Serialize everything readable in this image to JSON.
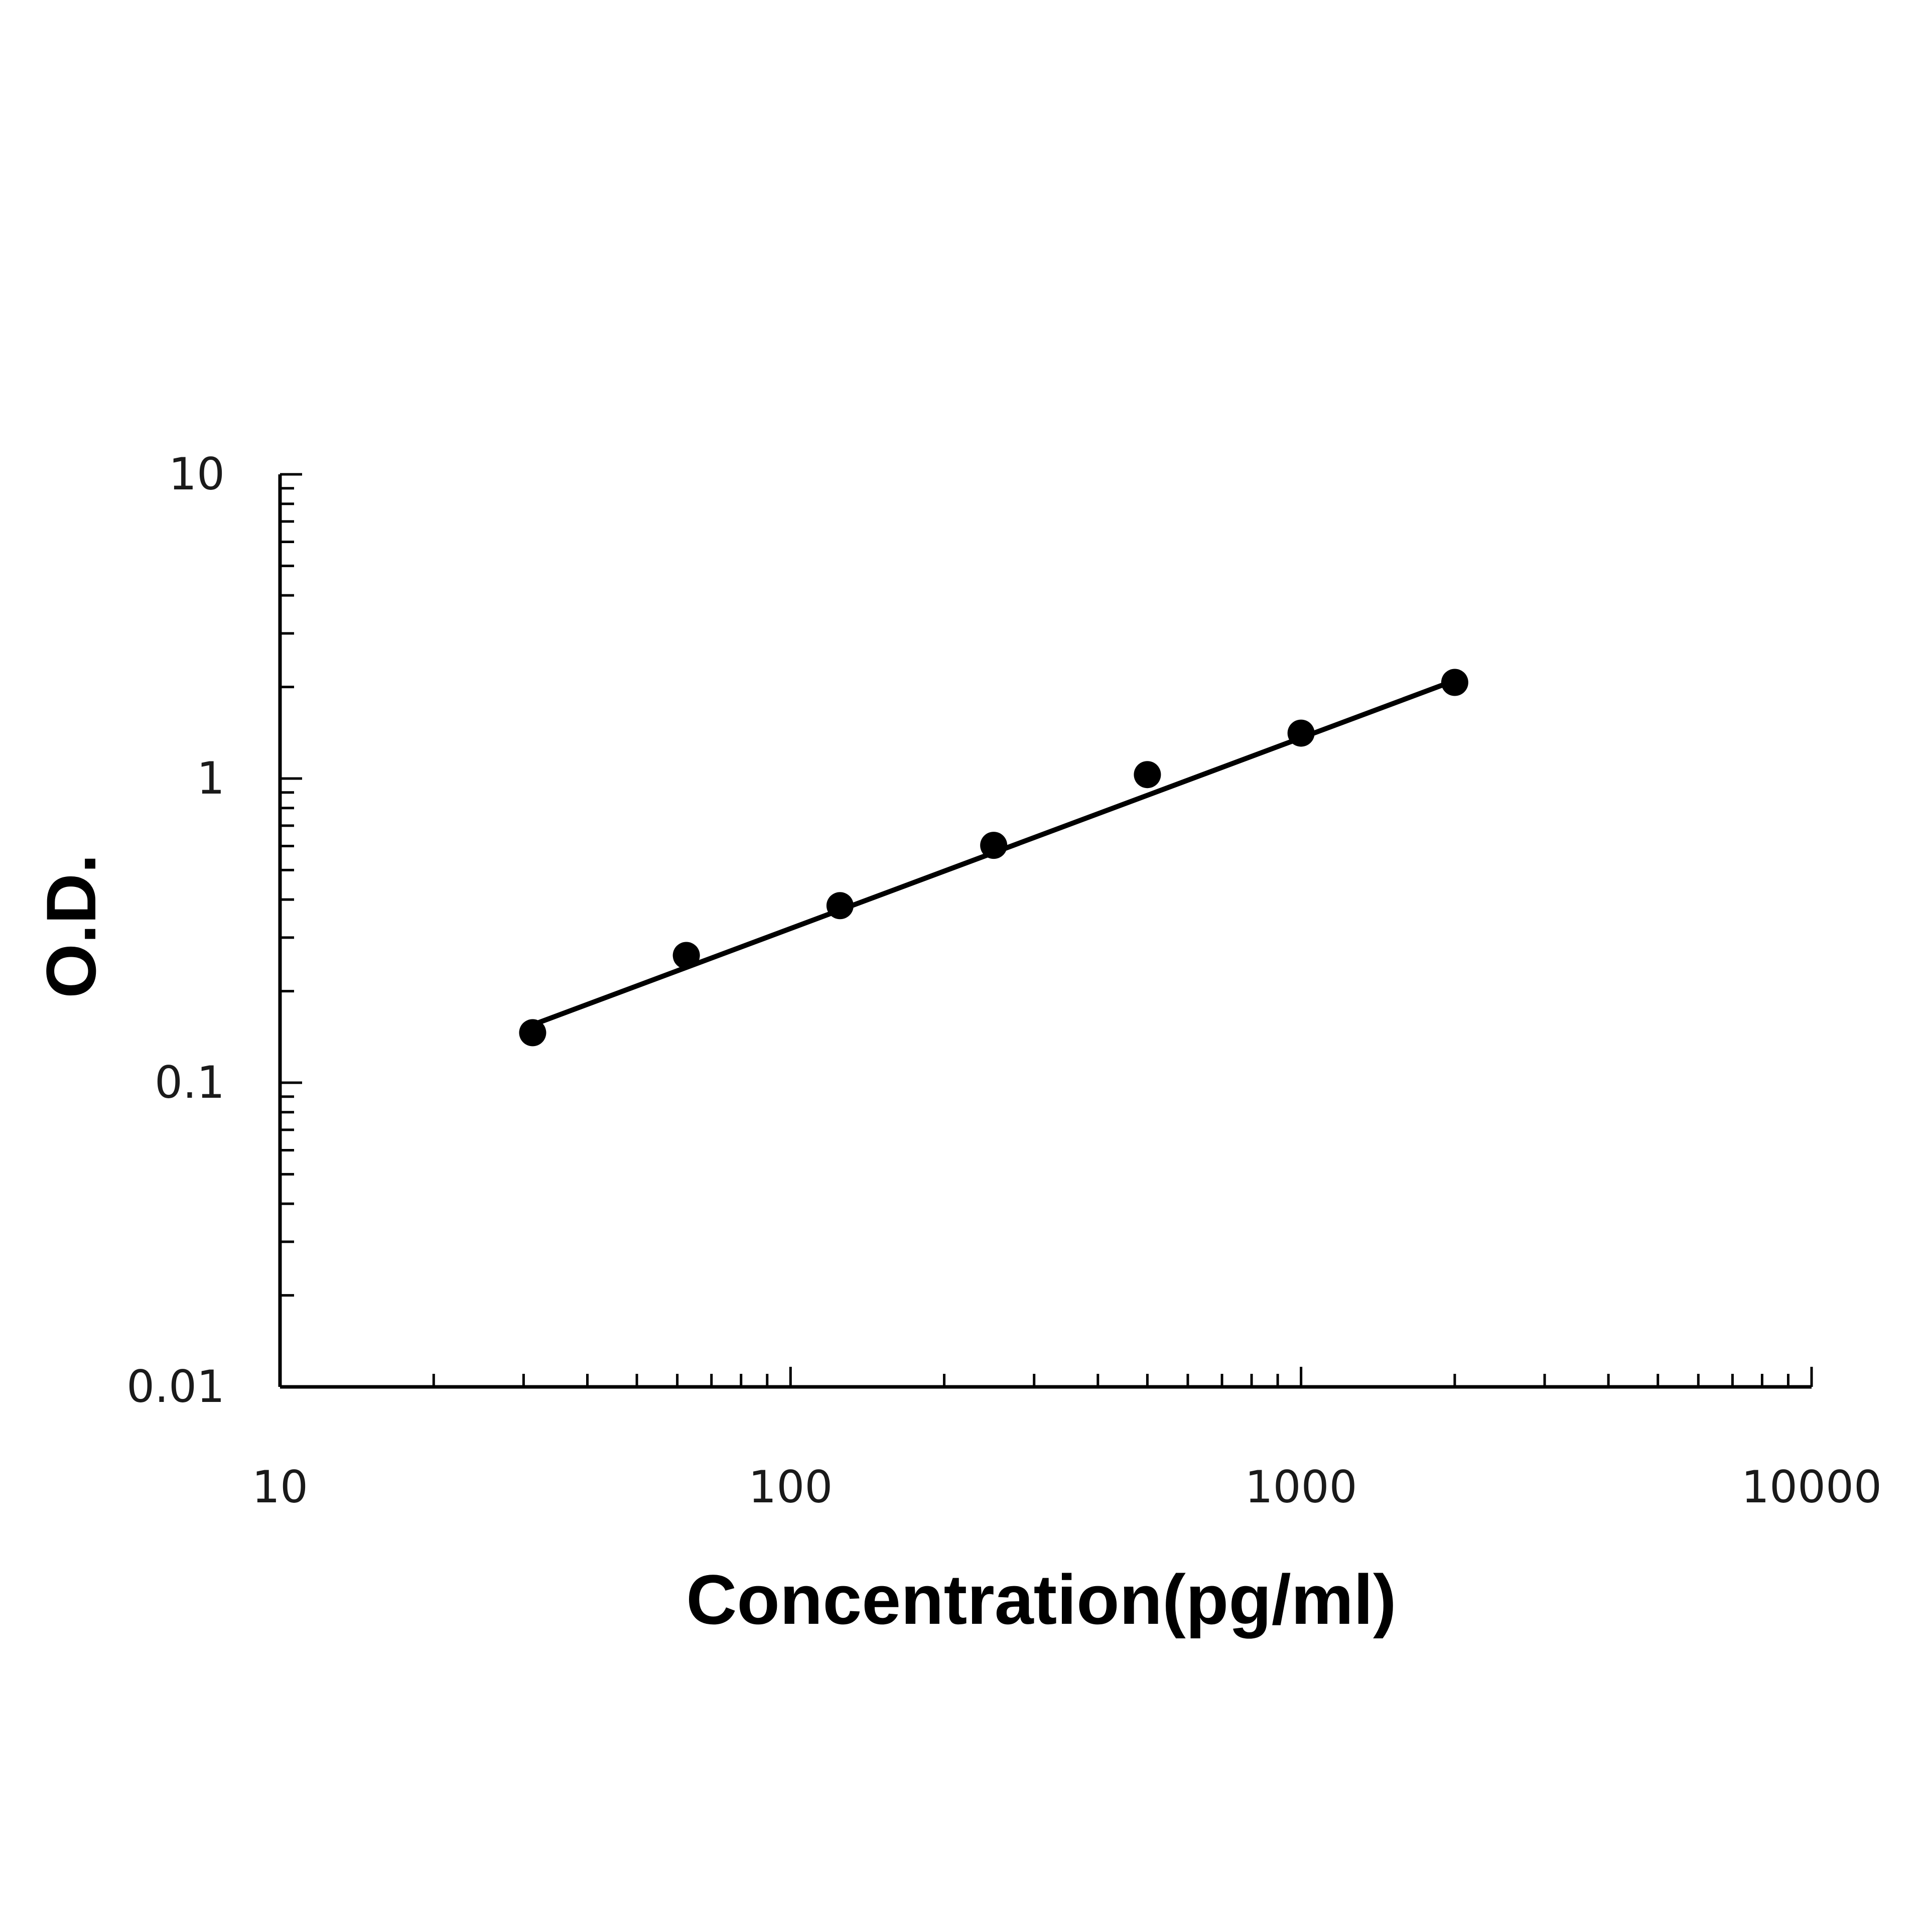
{
  "chart_data": {
    "type": "scatter",
    "xlabel": "Concentration(pg/ml)",
    "ylabel": "O.D.",
    "x_scale": "log",
    "y_scale": "log",
    "xlim": [
      10,
      10000
    ],
    "ylim": [
      0.01,
      10
    ],
    "x_tick_labels": [
      "10",
      "100",
      "1000",
      "10000"
    ],
    "y_tick_labels": [
      "0.01",
      "0.1",
      "1",
      "10"
    ],
    "grid": false,
    "series": [
      {
        "x": [
          31.25,
          62.5,
          125,
          250,
          500,
          1000,
          2000
        ],
        "y": [
          0.146,
          0.262,
          0.382,
          0.603,
          1.03,
          1.41,
          2.07
        ]
      }
    ],
    "fit_line": {
      "x": [
        31.25,
        2000
      ],
      "y": [
        0.155,
        2.1
      ]
    },
    "colors": {
      "points": "#000000",
      "line": "#000000",
      "axis": "#000000"
    }
  }
}
